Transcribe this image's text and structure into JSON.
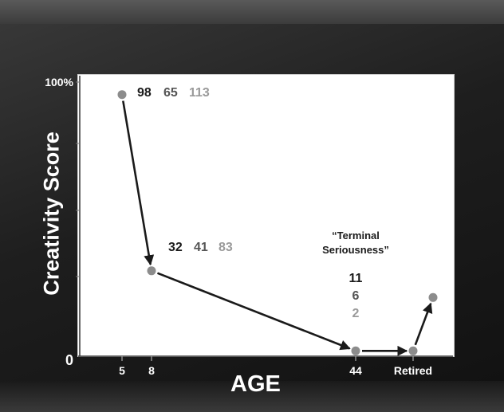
{
  "chart_data": {
    "type": "line",
    "title": "",
    "xlabel": "AGE",
    "ylabel": "Creativity Score",
    "x_ticks": [
      "5",
      "8",
      "44",
      "Retired"
    ],
    "y_ticks": [
      "100%",
      "0"
    ],
    "grid": false,
    "series": [
      {
        "points": [
          {
            "x": "5",
            "y": 98
          },
          {
            "x": "8",
            "y": 32
          },
          {
            "x": "44",
            "y": 2
          },
          {
            "x": "Retired",
            "y": 2
          },
          {
            "x": "Retired+",
            "y": 22
          }
        ]
      }
    ],
    "data_labels": [
      {
        "point": "5",
        "values": [
          "98",
          "65",
          "113"
        ]
      },
      {
        "point": "8",
        "values": [
          "32",
          "41",
          "83"
        ]
      },
      {
        "point": "44",
        "values": [
          "11",
          "6",
          "2"
        ]
      }
    ],
    "annotation": {
      "line1": "“Terminal",
      "line2": "Seriousness”"
    }
  },
  "colors": {
    "dark_text": "#1a1a1a",
    "mid_text": "#555555",
    "light_text": "#9a9a9a",
    "point": "#8c8c8c",
    "arrow": "#1a1a1a"
  }
}
